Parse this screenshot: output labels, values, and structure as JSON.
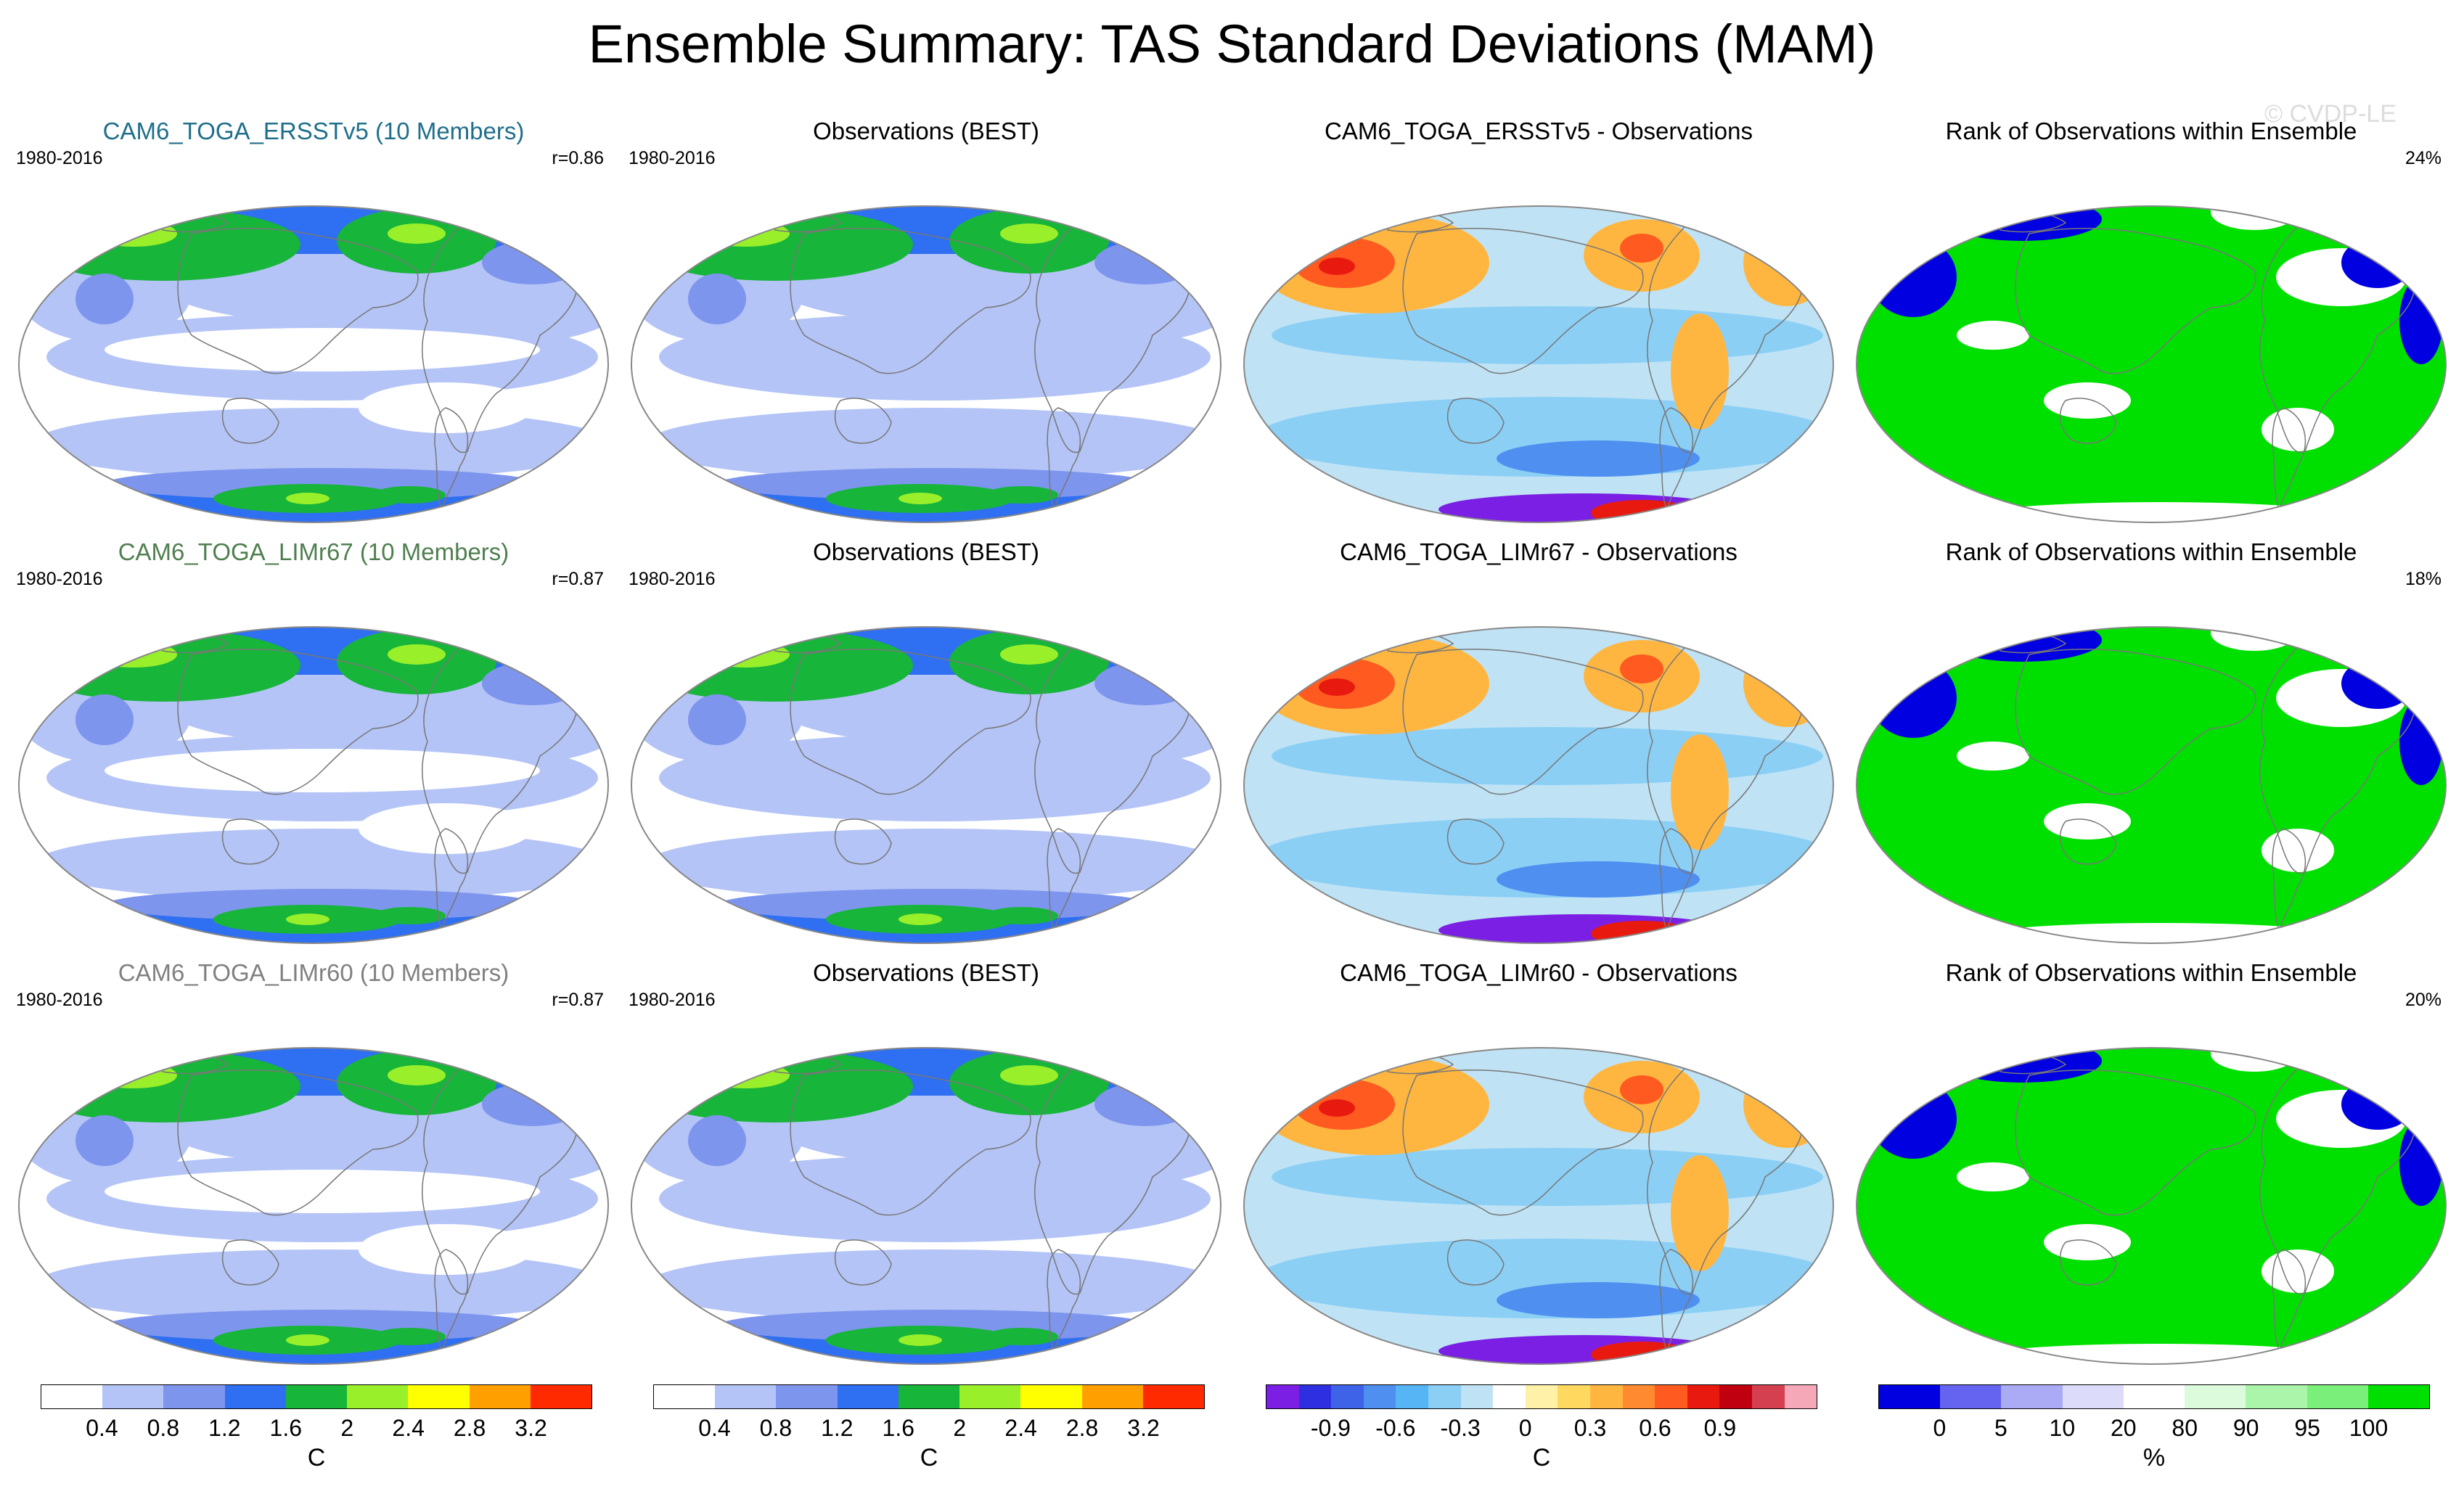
{
  "title": "Ensemble Summary: TAS Standard Deviations (MAM)",
  "watermark": "© CVDP-LE",
  "rows": [
    {
      "model_title": "CAM6_TOGA_ERSSTv5 (10 Members)",
      "model_title_color": "#1f6f8b",
      "years": "1980-2016",
      "r": "r=0.86",
      "obs_title": "Observations (BEST)",
      "diff_title": "CAM6_TOGA_ERSSTv5 - Observations",
      "rank_title": "Rank of Observations within Ensemble",
      "rank_pct": "24%"
    },
    {
      "model_title": "CAM6_TOGA_LIMr67 (10 Members)",
      "model_title_color": "#4f7f4f",
      "years": "1980-2016",
      "r": "r=0.87",
      "obs_title": "Observations (BEST)",
      "diff_title": "CAM6_TOGA_LIMr67 - Observations",
      "rank_title": "Rank of Observations within Ensemble",
      "rank_pct": "18%"
    },
    {
      "model_title": "CAM6_TOGA_LIMr60 (10 Members)",
      "model_title_color": "#808080",
      "years": "1980-2016",
      "r": "r=0.87",
      "obs_title": "Observations (BEST)",
      "diff_title": "CAM6_TOGA_LIMr60 - Observations",
      "rank_title": "Rank of Observations within Ensemble",
      "rank_pct": "20%"
    }
  ],
  "colorbars": {
    "std": {
      "colors": [
        "#ffffff",
        "#b4c4f6",
        "#7e95ee",
        "#2f6ff2",
        "#17b53a",
        "#99f02a",
        "#ffff00",
        "#ff9f00",
        "#ff2a00"
      ],
      "ticks": [
        "0.4",
        "0.8",
        "1.2",
        "1.6",
        "2",
        "2.4",
        "2.8",
        "3.2"
      ],
      "unit": "C"
    },
    "diff": {
      "colors": [
        "#7a1fe3",
        "#2d2fe0",
        "#3f63e8",
        "#4f8ff0",
        "#56b5f5",
        "#8ccff5",
        "#bfe3f5",
        "#ffffff",
        "#fff2a8",
        "#ffd860",
        "#ffb640",
        "#ff8a30",
        "#ff5a20",
        "#e81a10",
        "#c00010",
        "#d44050",
        "#f5a8b8"
      ],
      "ticks": [
        "-0.9",
        "-0.6",
        "-0.3",
        "0",
        "0.3",
        "0.6",
        "0.9"
      ],
      "unit": "C"
    },
    "rank": {
      "colors": [
        "#0000e0",
        "#6464f0",
        "#aaaaf5",
        "#dcdcfa",
        "#ffffff",
        "#dcfadc",
        "#aaf5aa",
        "#7af07a",
        "#00e000"
      ],
      "ticks": [
        "0",
        "5",
        "10",
        "20",
        "80",
        "90",
        "95",
        "100"
      ],
      "unit": "%"
    }
  },
  "map_colors": {
    "white": "#ffffff",
    "pale": "#b4c4f6",
    "mid": "#7e95ee",
    "blue": "#2f6ff2",
    "green": "#17b53a",
    "lime": "#99f02a",
    "yellow": "#ffff00",
    "diff_base": "#bfe3f5",
    "diff_light": "#8ccff5",
    "diff_blue": "#4f8ff0",
    "diff_warm": "#ffb640",
    "diff_hot": "#ff5a20",
    "diff_red": "#e81a10",
    "diff_purple": "#7a1fe3",
    "rank_green": "#00e000",
    "rank_blue": "#0000e0",
    "rank_white": "#ffffff"
  }
}
